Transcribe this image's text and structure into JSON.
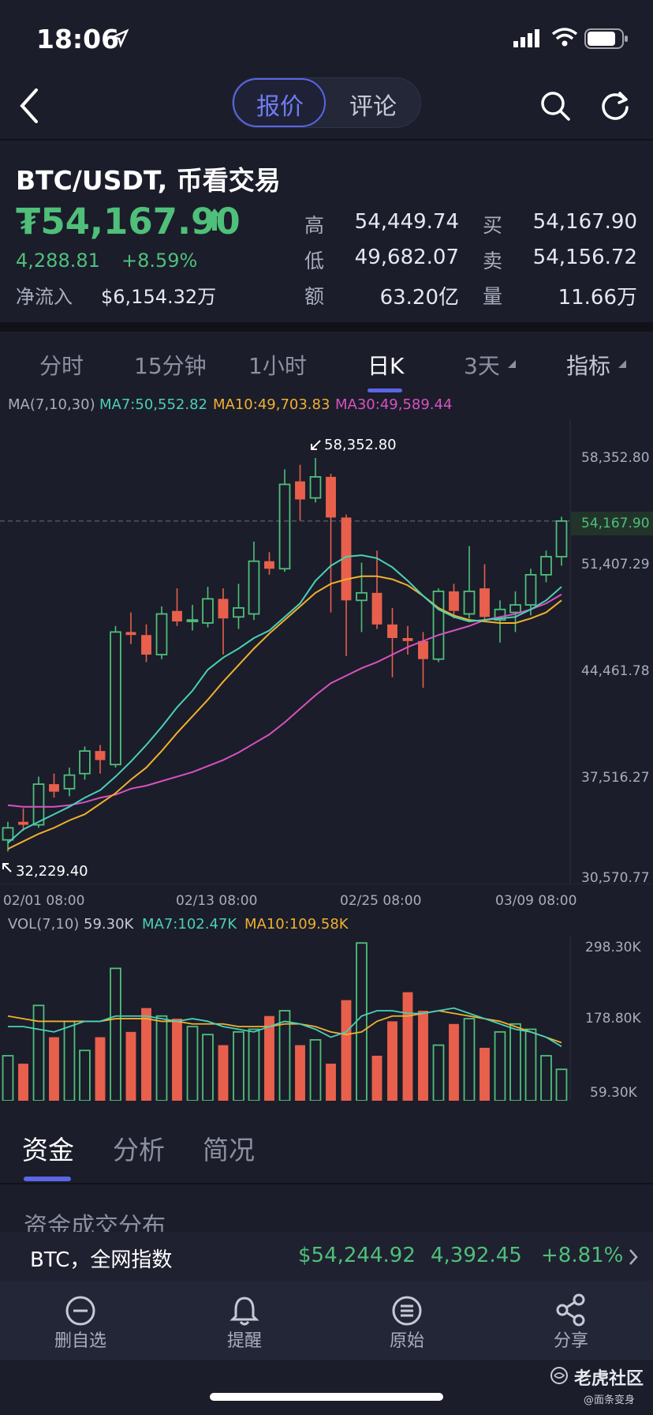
{
  "status": {
    "time": "18:06"
  },
  "nav": {
    "tab_quote": "报价",
    "tab_comment": "评论"
  },
  "pair": {
    "title": "BTC/USDT, 币看交易",
    "currency_symbol": "₮",
    "price": "54,167.90",
    "change": "4,288.81",
    "change_pct": "+8.59%",
    "inflow_label": "净流入",
    "inflow_value": "$6,154.32万"
  },
  "quote_stats": {
    "high_label": "高",
    "high": "54,449.74",
    "buy_label": "买",
    "buy": "54,167.90",
    "low_label": "低",
    "low": "49,682.07",
    "sell_label": "卖",
    "sell": "54,156.72",
    "amount_label": "额",
    "amount": "63.20亿",
    "volume_label": "量",
    "volume": "11.66万"
  },
  "period_tabs": {
    "t1": "分时",
    "t2": "15分钟",
    "t3": "1小时",
    "t4": "日K",
    "t5": "3天",
    "t6": "指标"
  },
  "ma_legend": {
    "title": "MA(7,10,30)",
    "ma7": "MA7:50,552.82",
    "ma10": "MA10:49,703.83",
    "ma30": "MA30:49,589.44"
  },
  "price_axis": [
    "58,352.80",
    "51,407.29",
    "44,461.78",
    "37,516.27",
    "30,570.77"
  ],
  "current_price_tag": "54,167.90",
  "max_marker": "58,352.80",
  "min_marker": "32,229.40",
  "date_axis": [
    "02/01 08:00",
    "02/13 08:00",
    "02/25 08:00",
    "03/09 08:00"
  ],
  "vol_legend": {
    "title": "VOL(7,10)",
    "current": "59.30K",
    "ma7": "MA7:102.47K",
    "ma10": "MA10:109.58K"
  },
  "vol_axis": [
    "298.30K",
    "178.80K",
    "59.30K"
  ],
  "bottom_tabs": {
    "funds": "资金",
    "analysis": "分析",
    "overview": "简况"
  },
  "section_title": "资金成交分布",
  "ticker": {
    "label": "BTC，全网指数",
    "price": "$54,244.92",
    "change": "4,392.45",
    "pct": "+8.81%"
  },
  "toolbar": {
    "remove": "删自选",
    "alert": "提醒",
    "original": "原始",
    "share": "分享"
  },
  "watermark": {
    "brand": "老虎社区",
    "sub": "@面条变身"
  },
  "colors": {
    "up": "#4fbf7a",
    "down": "#e8604c",
    "ma7": "#4ad0b8",
    "ma10": "#f0b030",
    "ma30": "#d852c0",
    "accent": "#5a66e6"
  },
  "chart_data": {
    "type": "candlestick",
    "candles": [
      {
        "o": 33000,
        "h": 34200,
        "l": 32229.4,
        "c": 33800
      },
      {
        "o": 34200,
        "h": 35100,
        "l": 33600,
        "c": 34000
      },
      {
        "o": 34000,
        "h": 37200,
        "l": 33800,
        "c": 36700
      },
      {
        "o": 36700,
        "h": 37400,
        "l": 35800,
        "c": 36200
      },
      {
        "o": 36400,
        "h": 37800,
        "l": 35900,
        "c": 37300
      },
      {
        "o": 37400,
        "h": 39200,
        "l": 37000,
        "c": 38900
      },
      {
        "o": 38900,
        "h": 39300,
        "l": 37400,
        "c": 38300
      },
      {
        "o": 38000,
        "h": 47200,
        "l": 37800,
        "c": 46800
      },
      {
        "o": 46800,
        "h": 48100,
        "l": 46000,
        "c": 46600
      },
      {
        "o": 46600,
        "h": 47300,
        "l": 44800,
        "c": 45300
      },
      {
        "o": 45300,
        "h": 48500,
        "l": 45000,
        "c": 48000
      },
      {
        "o": 48200,
        "h": 49700,
        "l": 47200,
        "c": 47500
      },
      {
        "o": 47500,
        "h": 48600,
        "l": 46900,
        "c": 47600
      },
      {
        "o": 47400,
        "h": 49800,
        "l": 47100,
        "c": 49000
      },
      {
        "o": 49000,
        "h": 49700,
        "l": 45300,
        "c": 47700
      },
      {
        "o": 47800,
        "h": 50000,
        "l": 47000,
        "c": 48400
      },
      {
        "o": 48000,
        "h": 52800,
        "l": 47600,
        "c": 51500
      },
      {
        "o": 51500,
        "h": 52100,
        "l": 50600,
        "c": 51000
      },
      {
        "o": 51000,
        "h": 57600,
        "l": 50800,
        "c": 56600
      },
      {
        "o": 56800,
        "h": 57900,
        "l": 54200,
        "c": 55600
      },
      {
        "o": 55700,
        "h": 58352.8,
        "l": 55400,
        "c": 57100
      },
      {
        "o": 57100,
        "h": 57300,
        "l": 48100,
        "c": 54400
      },
      {
        "o": 54400,
        "h": 54600,
        "l": 45200,
        "c": 48900
      },
      {
        "o": 48900,
        "h": 51400,
        "l": 46800,
        "c": 49400
      },
      {
        "o": 49400,
        "h": 52200,
        "l": 47000,
        "c": 47300
      },
      {
        "o": 47300,
        "h": 48400,
        "l": 43800,
        "c": 46400
      },
      {
        "o": 46400,
        "h": 47200,
        "l": 45300,
        "c": 46200
      },
      {
        "o": 46200,
        "h": 46800,
        "l": 43100,
        "c": 45000
      },
      {
        "o": 45000,
        "h": 49700,
        "l": 44800,
        "c": 49500
      },
      {
        "o": 49500,
        "h": 50000,
        "l": 47700,
        "c": 48200
      },
      {
        "o": 48000,
        "h": 52500,
        "l": 47700,
        "c": 49500
      },
      {
        "o": 49700,
        "h": 51300,
        "l": 47500,
        "c": 47800
      },
      {
        "o": 47600,
        "h": 48900,
        "l": 46100,
        "c": 48300
      },
      {
        "o": 48100,
        "h": 49500,
        "l": 46800,
        "c": 48600
      },
      {
        "o": 48600,
        "h": 51000,
        "l": 47900,
        "c": 50600
      },
      {
        "o": 50600,
        "h": 52200,
        "l": 50100,
        "c": 51800
      },
      {
        "o": 51800,
        "h": 54449.74,
        "l": 51200,
        "c": 54167.9
      }
    ],
    "ma7": [
      32800,
      33700,
      34200,
      34700,
      35200,
      35800,
      36300,
      37200,
      38200,
      39300,
      40500,
      41800,
      42900,
      44300,
      45100,
      45700,
      46400,
      46900,
      47800,
      48700,
      50200,
      51200,
      51800,
      51900,
      51700,
      51100,
      50200,
      49200,
      48300,
      47800,
      47500,
      47600,
      47700,
      47800,
      48300,
      48900,
      49800
    ],
    "ma10": [
      32400,
      32900,
      33400,
      33800,
      34300,
      34700,
      35400,
      36100,
      37000,
      37800,
      38900,
      40100,
      41200,
      42300,
      43500,
      44600,
      45700,
      46700,
      47600,
      48500,
      49400,
      50000,
      50300,
      50500,
      50500,
      50300,
      49900,
      49200,
      48400,
      47900,
      47600,
      47500,
      47400,
      47400,
      47700,
      48100,
      48900
    ],
    "ma30": [
      35300,
      35200,
      35200,
      35200,
      35300,
      35500,
      35800,
      36000,
      36400,
      36600,
      36900,
      37200,
      37500,
      37900,
      38300,
      38800,
      39400,
      40000,
      40800,
      41700,
      42600,
      43400,
      43900,
      44400,
      44800,
      45300,
      45800,
      46200,
      46600,
      46900,
      47200,
      47600,
      47800,
      48000,
      48300,
      48700,
      49300
    ],
    "volume": [
      85,
      70,
      180,
      120,
      150,
      95,
      120,
      250,
      130,
      175,
      160,
      155,
      140,
      125,
      105,
      130,
      135,
      160,
      170,
      105,
      115,
      70,
      190,
      298,
      85,
      150,
      205,
      170,
      105,
      145,
      155,
      100,
      130,
      145,
      135,
      85,
      59.3
    ],
    "vol_ma7": [
      140,
      140,
      135,
      130,
      140,
      150,
      150,
      160,
      160,
      160,
      155,
      150,
      155,
      150,
      140,
      135,
      130,
      140,
      150,
      145,
      135,
      120,
      130,
      160,
      170,
      170,
      165,
      165,
      170,
      175,
      165,
      155,
      145,
      135,
      130,
      120,
      102.47
    ],
    "vol_ma10": [
      160,
      155,
      150,
      150,
      150,
      150,
      150,
      155,
      155,
      155,
      150,
      150,
      145,
      145,
      145,
      140,
      140,
      140,
      145,
      145,
      140,
      130,
      125,
      130,
      150,
      160,
      160,
      165,
      170,
      165,
      160,
      155,
      150,
      140,
      130,
      120,
      109.58
    ],
    "ylim": [
      30570.77,
      58352.8
    ],
    "vol_ylim": [
      0,
      298.3
    ]
  }
}
